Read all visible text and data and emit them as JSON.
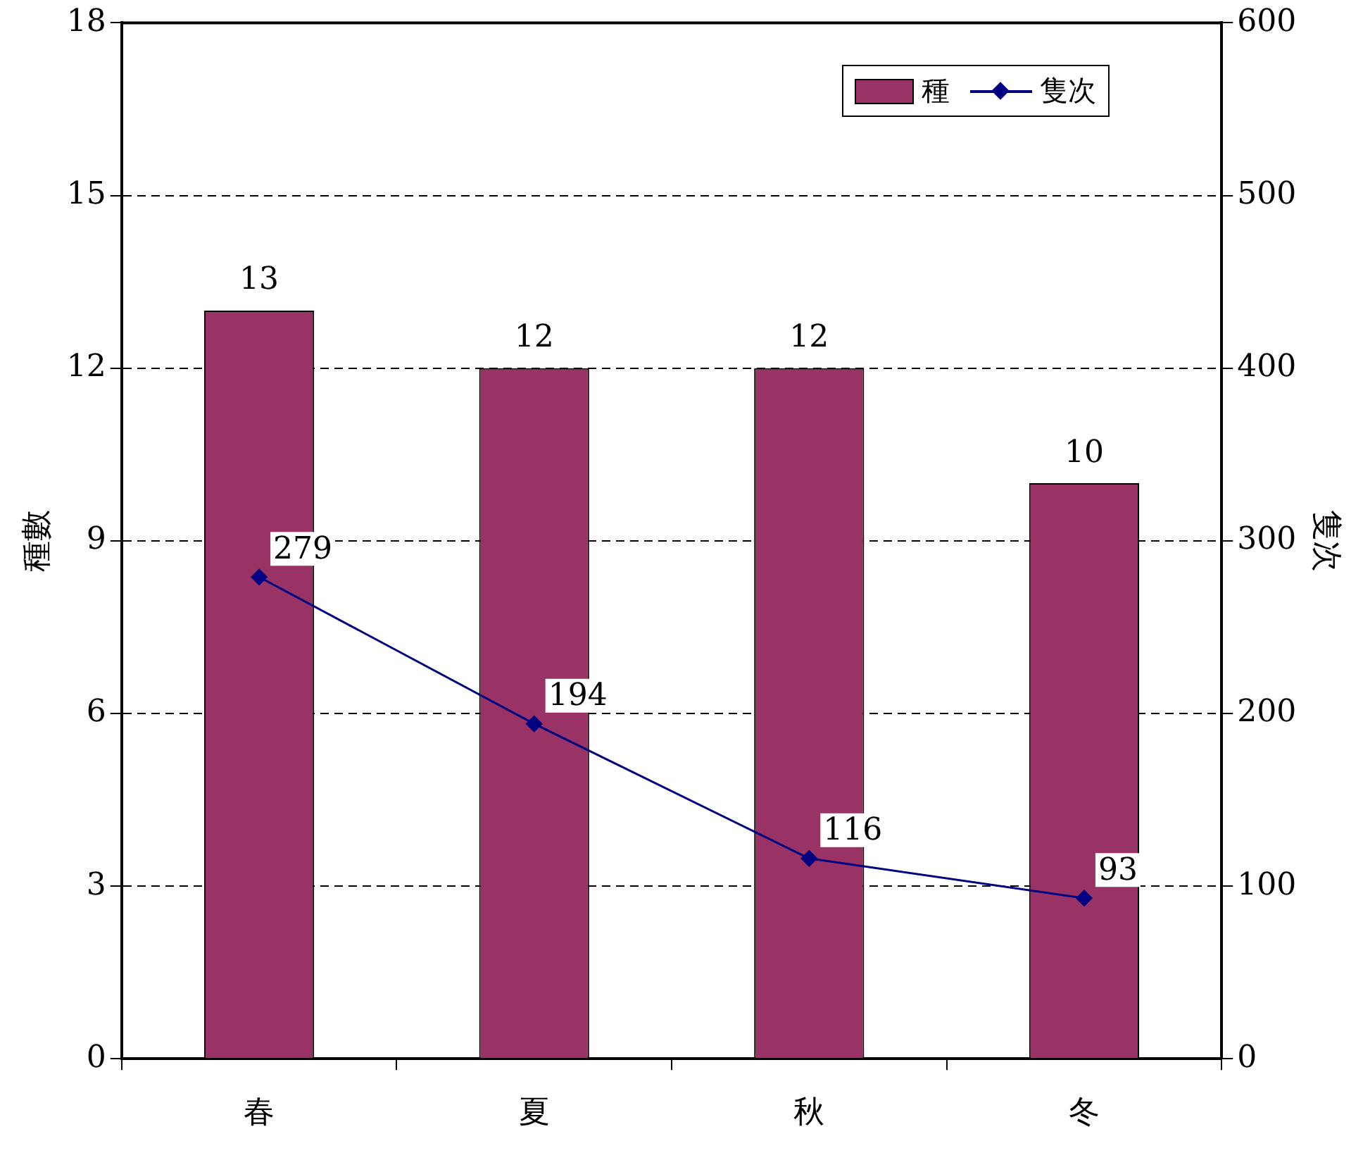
{
  "chart_data": {
    "type": "bar",
    "categories": [
      "春",
      "夏",
      "秋",
      "冬"
    ],
    "ylabel": "種數",
    "y2label": "隻次",
    "ylim": [
      0,
      18
    ],
    "yticks": [
      0,
      3,
      6,
      9,
      12,
      15,
      18
    ],
    "y2lim": [
      0,
      600
    ],
    "y2ticks": [
      0,
      100,
      200,
      300,
      400,
      500,
      600
    ],
    "grid": "y",
    "legend": "top right",
    "data_labels": true,
    "marker": "diamond",
    "series": [
      {
        "name": "種",
        "color": "#993366",
        "values": [
          13,
          12,
          12,
          10
        ]
      },
      {
        "name": "隻次",
        "type": "line",
        "axis": "y2",
        "color": "#000080",
        "values": [
          279,
          194,
          116,
          93
        ]
      }
    ]
  }
}
